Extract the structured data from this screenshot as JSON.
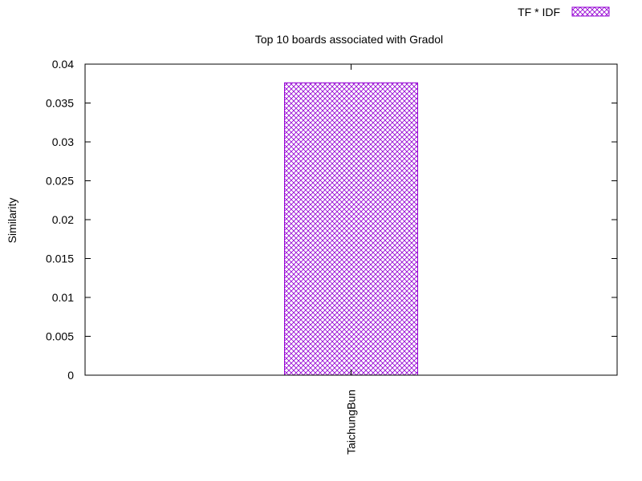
{
  "chart_data": {
    "type": "bar",
    "title": "Top 10 boards associated with Gradol",
    "xlabel": "",
    "ylabel": "Similarity",
    "categories": [
      "TaichungBun"
    ],
    "series": [
      {
        "name": "TF * IDF",
        "values": [
          0.0376
        ]
      }
    ],
    "ylim": [
      0,
      0.04
    ],
    "yticks": [
      "0",
      "0.005",
      "0.01",
      "0.015",
      "0.02",
      "0.025",
      "0.03",
      "0.035",
      "0.04"
    ],
    "grid": false,
    "legend_position": "top-right",
    "bar_color": "#9400d3",
    "bar_fill": "crosshatch"
  }
}
